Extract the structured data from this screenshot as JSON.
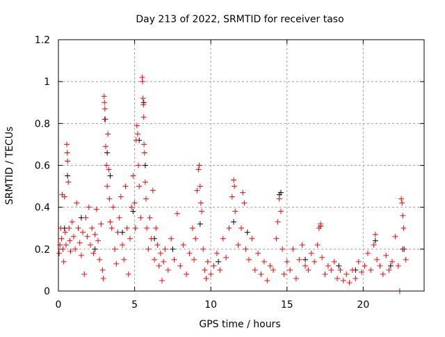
{
  "chart_data": {
    "type": "scatter",
    "title": "Day 213 of 2022, SRMTID for receiver taso",
    "xlabel": "GPS time / hours",
    "ylabel": "SRMTID / TECUs",
    "xlim": [
      0,
      24
    ],
    "ylim": [
      0,
      1.2
    ],
    "xticks": [
      0,
      5,
      10,
      15,
      20
    ],
    "xtick_labels": [
      "0",
      "5",
      "10",
      "15",
      "20"
    ],
    "yticks": [
      0,
      0.2,
      0.4,
      0.6,
      0.8,
      1,
      1.2
    ],
    "ytick_labels": [
      "0",
      "0.2",
      "0.4",
      "0.6",
      "0.8",
      "1",
      "1.2"
    ],
    "grid": true,
    "marker": "+",
    "series": [
      {
        "name": "red",
        "color": "#ff0000",
        "points": [
          [
            0.05,
            0.18
          ],
          [
            0.1,
            0.22
          ],
          [
            0.15,
            0.3
          ],
          [
            0.2,
            0.25
          ],
          [
            0.25,
            0.46
          ],
          [
            0.3,
            0.2
          ],
          [
            0.35,
            0.14
          ],
          [
            0.4,
            0.45
          ],
          [
            0.45,
            0.28
          ],
          [
            0.5,
            0.22
          ],
          [
            0.55,
            0.7
          ],
          [
            0.58,
            0.66
          ],
          [
            0.6,
            0.62
          ],
          [
            0.65,
            0.52
          ],
          [
            0.7,
            0.3
          ],
          [
            0.75,
            0.24
          ],
          [
            0.8,
            0.19
          ],
          [
            0.9,
            0.33
          ],
          [
            1.0,
            0.26
          ],
          [
            1.1,
            0.2
          ],
          [
            1.2,
            0.42
          ],
          [
            1.3,
            0.3
          ],
          [
            1.4,
            0.23
          ],
          [
            1.5,
            0.17
          ],
          [
            1.6,
            0.28
          ],
          [
            1.7,
            0.08
          ],
          [
            1.8,
            0.35
          ],
          [
            1.9,
            0.26
          ],
          [
            2.0,
            0.4
          ],
          [
            2.1,
            0.22
          ],
          [
            2.2,
            0.3
          ],
          [
            2.3,
            0.18
          ],
          [
            2.4,
            0.27
          ],
          [
            2.5,
            0.39
          ],
          [
            2.6,
            0.24
          ],
          [
            2.7,
            0.15
          ],
          [
            2.8,
            0.32
          ],
          [
            2.9,
            0.1
          ],
          [
            2.95,
            0.06
          ],
          [
            3.0,
            0.93
          ],
          [
            3.02,
            0.9
          ],
          [
            3.05,
            0.87
          ],
          [
            3.08,
            0.82
          ],
          [
            3.1,
            0.69
          ],
          [
            3.15,
            0.6
          ],
          [
            3.2,
            0.5
          ],
          [
            3.25,
            0.75
          ],
          [
            3.3,
            0.58
          ],
          [
            3.35,
            0.44
          ],
          [
            3.4,
            0.33
          ],
          [
            3.5,
            0.3
          ],
          [
            3.6,
            0.4
          ],
          [
            3.7,
            0.2
          ],
          [
            3.8,
            0.13
          ],
          [
            3.9,
            0.28
          ],
          [
            4.0,
            0.35
          ],
          [
            4.1,
            0.45
          ],
          [
            4.2,
            0.22
          ],
          [
            4.3,
            0.15
          ],
          [
            4.4,
            0.5
          ],
          [
            4.5,
            0.3
          ],
          [
            4.6,
            0.08
          ],
          [
            4.7,
            0.25
          ],
          [
            4.8,
            0.4
          ],
          [
            4.9,
            0.55
          ],
          [
            5.0,
            0.42
          ],
          [
            5.05,
            0.3
          ],
          [
            5.1,
            0.72
          ],
          [
            5.15,
            0.79
          ],
          [
            5.2,
            0.75
          ],
          [
            5.25,
            0.6
          ],
          [
            5.3,
            0.5
          ],
          [
            5.4,
            0.35
          ],
          [
            5.5,
            1.02
          ],
          [
            5.52,
            1.0
          ],
          [
            5.55,
            0.92
          ],
          [
            5.58,
            0.89
          ],
          [
            5.6,
            0.83
          ],
          [
            5.62,
            0.7
          ],
          [
            5.65,
            0.66
          ],
          [
            5.7,
            0.52
          ],
          [
            5.75,
            0.44
          ],
          [
            5.8,
            0.3
          ],
          [
            5.9,
            0.2
          ],
          [
            6.0,
            0.35
          ],
          [
            6.1,
            0.25
          ],
          [
            6.2,
            0.48
          ],
          [
            6.3,
            0.15
          ],
          [
            6.4,
            0.3
          ],
          [
            6.5,
            0.22
          ],
          [
            6.6,
            0.12
          ],
          [
            6.7,
            0.18
          ],
          [
            6.8,
            0.05
          ],
          [
            6.9,
            0.14
          ],
          [
            7.0,
            0.2
          ],
          [
            7.2,
            0.1
          ],
          [
            7.4,
            0.25
          ],
          [
            7.6,
            0.15
          ],
          [
            7.8,
            0.37
          ],
          [
            8.0,
            0.12
          ],
          [
            8.2,
            0.22
          ],
          [
            8.4,
            0.08
          ],
          [
            8.6,
            0.18
          ],
          [
            8.8,
            0.3
          ],
          [
            8.9,
            0.15
          ],
          [
            9.0,
            0.25
          ],
          [
            9.1,
            0.48
          ],
          [
            9.2,
            0.58
          ],
          [
            9.25,
            0.6
          ],
          [
            9.3,
            0.5
          ],
          [
            9.35,
            0.42
          ],
          [
            9.4,
            0.38
          ],
          [
            9.5,
            0.2
          ],
          [
            9.6,
            0.1
          ],
          [
            9.7,
            0.06
          ],
          [
            9.8,
            0.14
          ],
          [
            10.0,
            0.08
          ],
          [
            10.2,
            0.12
          ],
          [
            10.4,
            0.18
          ],
          [
            10.6,
            0.1
          ],
          [
            10.8,
            0.25
          ],
          [
            11.0,
            0.16
          ],
          [
            11.2,
            0.3
          ],
          [
            11.4,
            0.45
          ],
          [
            11.5,
            0.53
          ],
          [
            11.55,
            0.5
          ],
          [
            11.6,
            0.38
          ],
          [
            11.8,
            0.22
          ],
          [
            12.0,
            0.3
          ],
          [
            12.1,
            0.47
          ],
          [
            12.2,
            0.42
          ],
          [
            12.3,
            0.2
          ],
          [
            12.5,
            0.15
          ],
          [
            12.7,
            0.25
          ],
          [
            12.9,
            0.1
          ],
          [
            13.1,
            0.18
          ],
          [
            13.3,
            0.08
          ],
          [
            13.5,
            0.14
          ],
          [
            13.7,
            0.05
          ],
          [
            13.9,
            0.12
          ],
          [
            14.1,
            0.1
          ],
          [
            14.3,
            0.25
          ],
          [
            14.4,
            0.33
          ],
          [
            14.5,
            0.44
          ],
          [
            14.6,
            0.38
          ],
          [
            14.7,
            0.2
          ],
          [
            14.8,
            0.08
          ],
          [
            15.0,
            0.14
          ],
          [
            15.2,
            0.1
          ],
          [
            15.4,
            0.2
          ],
          [
            15.6,
            0.06
          ],
          [
            15.8,
            0.15
          ],
          [
            16.0,
            0.22
          ],
          [
            16.2,
            0.12
          ],
          [
            16.4,
            0.1
          ],
          [
            16.6,
            0.18
          ],
          [
            16.8,
            0.14
          ],
          [
            17.0,
            0.22
          ],
          [
            17.1,
            0.3
          ],
          [
            17.2,
            0.32
          ],
          [
            17.3,
            0.16
          ],
          [
            17.5,
            0.08
          ],
          [
            17.7,
            0.12
          ],
          [
            17.9,
            0.1
          ],
          [
            18.1,
            0.14
          ],
          [
            18.3,
            0.06
          ],
          [
            18.5,
            0.1
          ],
          [
            18.7,
            0.05
          ],
          [
            18.9,
            0.08
          ],
          [
            19.1,
            0.04
          ],
          [
            19.3,
            0.1
          ],
          [
            19.5,
            0.06
          ],
          [
            19.7,
            0.14
          ],
          [
            19.9,
            0.09
          ],
          [
            20.1,
            0.12
          ],
          [
            20.3,
            0.18
          ],
          [
            20.5,
            0.1
          ],
          [
            20.7,
            0.22
          ],
          [
            20.8,
            0.27
          ],
          [
            20.9,
            0.15
          ],
          [
            21.1,
            0.12
          ],
          [
            21.3,
            0.08
          ],
          [
            21.5,
            0.17
          ],
          [
            21.7,
            0.1
          ],
          [
            21.9,
            0.14
          ],
          [
            22.1,
            0.26
          ],
          [
            22.3,
            0.12
          ],
          [
            22.4,
            0.0
          ],
          [
            22.5,
            0.44
          ],
          [
            22.55,
            0.42
          ],
          [
            22.6,
            0.36
          ],
          [
            22.65,
            0.3
          ],
          [
            22.7,
            0.2
          ],
          [
            22.8,
            0.15
          ]
        ]
      },
      {
        "name": "black",
        "color": "#000000",
        "points": [
          [
            0.4,
            0.3
          ],
          [
            0.6,
            0.55
          ],
          [
            1.5,
            0.35
          ],
          [
            2.4,
            0.2
          ],
          [
            3.05,
            0.82
          ],
          [
            3.2,
            0.66
          ],
          [
            3.4,
            0.55
          ],
          [
            4.2,
            0.28
          ],
          [
            4.9,
            0.38
          ],
          [
            5.3,
            0.72
          ],
          [
            5.6,
            0.9
          ],
          [
            5.7,
            0.6
          ],
          [
            6.3,
            0.25
          ],
          [
            7.5,
            0.2
          ],
          [
            9.3,
            0.32
          ],
          [
            10.5,
            0.14
          ],
          [
            11.5,
            0.33
          ],
          [
            12.4,
            0.28
          ],
          [
            14.6,
            0.47
          ],
          [
            14.5,
            0.46
          ],
          [
            16.2,
            0.15
          ],
          [
            17.2,
            0.31
          ],
          [
            18.4,
            0.12
          ],
          [
            19.5,
            0.1
          ],
          [
            20.8,
            0.24
          ],
          [
            21.8,
            0.12
          ],
          [
            22.6,
            0.2
          ]
        ]
      }
    ]
  }
}
